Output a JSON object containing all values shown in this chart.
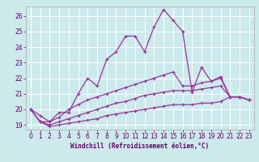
{
  "xlabel": "Windchill (Refroidissement éolien,°C)",
  "background_color": "#cce9ec",
  "grid_color": "#ffffff",
  "line_color": "#993399",
  "x_values": [
    0,
    1,
    2,
    3,
    4,
    5,
    6,
    7,
    8,
    9,
    10,
    11,
    12,
    13,
    14,
    15,
    16,
    17,
    18,
    19,
    20,
    21,
    22,
    23
  ],
  "series": [
    [
      20.0,
      19.6,
      19.2,
      19.8,
      19.8,
      21.0,
      22.0,
      21.5,
      23.2,
      23.7,
      24.7,
      24.7,
      23.7,
      25.3,
      26.4,
      25.7,
      25.0,
      21.1,
      22.7,
      21.8,
      22.1,
      20.8,
      20.8,
      20.6
    ],
    [
      20.0,
      19.2,
      19.2,
      19.5,
      20.0,
      20.3,
      20.6,
      20.8,
      21.0,
      21.2,
      21.4,
      21.6,
      21.8,
      22.0,
      22.2,
      22.4,
      21.5,
      21.5,
      21.7,
      21.8,
      22.0,
      20.8,
      20.8,
      20.6
    ],
    [
      20.0,
      19.2,
      19.0,
      19.2,
      19.4,
      19.6,
      19.8,
      20.0,
      20.2,
      20.4,
      20.5,
      20.7,
      20.9,
      21.0,
      21.1,
      21.2,
      21.2,
      21.2,
      21.3,
      21.4,
      21.5,
      20.8,
      20.8,
      20.6
    ],
    [
      20.0,
      19.2,
      18.9,
      19.0,
      19.1,
      19.2,
      19.3,
      19.4,
      19.6,
      19.7,
      19.8,
      19.9,
      20.0,
      20.1,
      20.2,
      20.3,
      20.3,
      20.3,
      20.4,
      20.4,
      20.5,
      20.8,
      20.8,
      20.6
    ]
  ],
  "ylim": [
    18.7,
    26.6
  ],
  "yticks": [
    19,
    20,
    21,
    22,
    23,
    24,
    25,
    26
  ],
  "xlim": [
    -0.5,
    23.5
  ],
  "xticks": [
    0,
    1,
    2,
    3,
    4,
    5,
    6,
    7,
    8,
    9,
    10,
    11,
    12,
    13,
    14,
    15,
    16,
    17,
    18,
    19,
    20,
    21,
    22,
    23
  ],
  "tick_fontsize": 5.5,
  "xlabel_fontsize": 5.5
}
